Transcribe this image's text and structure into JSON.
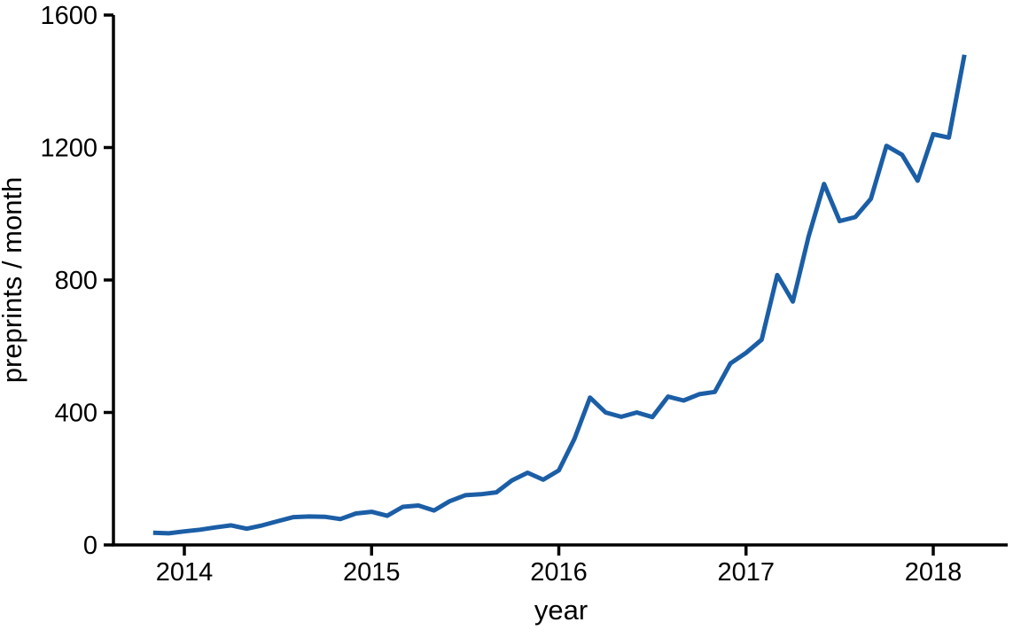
{
  "figure": {
    "background": "#ffffff"
  },
  "chart_data": {
    "type": "line",
    "title": "",
    "xlabel": "year",
    "ylabel": "preprints / month",
    "x_tick_labels": [
      "2014",
      "2015",
      "2016",
      "2017",
      "2018"
    ],
    "y_tick_labels": [
      "0",
      "400",
      "800",
      "1200",
      "1600"
    ],
    "xlim_year": [
      2013.79,
      2018.4
    ],
    "ylim": [
      0,
      1600
    ],
    "grid": false,
    "legend": "none",
    "line_color": "#1b5ea6",
    "axis_color": "#000000",
    "series": [
      {
        "name": "preprints per month",
        "months": [
          "2013-11",
          "2013-12",
          "2014-01",
          "2014-02",
          "2014-03",
          "2014-04",
          "2014-05",
          "2014-06",
          "2014-07",
          "2014-08",
          "2014-09",
          "2014-10",
          "2014-11",
          "2014-12",
          "2015-01",
          "2015-02",
          "2015-03",
          "2015-04",
          "2015-05",
          "2015-06",
          "2015-07",
          "2015-08",
          "2015-09",
          "2015-10",
          "2015-11",
          "2015-12",
          "2016-01",
          "2016-02",
          "2016-03",
          "2016-04",
          "2016-05",
          "2016-06",
          "2016-07",
          "2016-08",
          "2016-09",
          "2016-10",
          "2016-11",
          "2016-12",
          "2017-01",
          "2017-02",
          "2017-03",
          "2017-04",
          "2017-05",
          "2017-06",
          "2017-07",
          "2017-08",
          "2017-09",
          "2017-10",
          "2017-11",
          "2017-12",
          "2018-01",
          "2018-02",
          "2018-03"
        ],
        "values": [
          37,
          35,
          41,
          46,
          53,
          59,
          49,
          59,
          72,
          84,
          86,
          85,
          78,
          95,
          100,
          88,
          115,
          119,
          104,
          132,
          150,
          153,
          159,
          195,
          218,
          197,
          225,
          320,
          445,
          400,
          387,
          400,
          386,
          448,
          436,
          455,
          462,
          548,
          580,
          620,
          815,
          735,
          930,
          1090,
          978,
          990,
          1045,
          1205,
          1178,
          1100,
          1240,
          1230,
          1480
        ]
      }
    ]
  }
}
